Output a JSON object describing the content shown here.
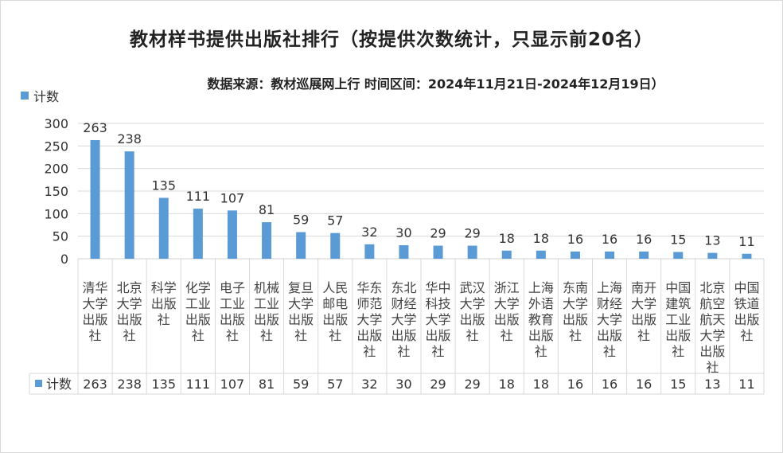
{
  "chart_data": {
    "type": "bar",
    "title": "教材样书提供出版社排行（按提供次数统计，只显示前20名）",
    "subtitle": "数据来源：教材巡展网上行 时间区间：2024年11月21日-2024年12月19日）",
    "series": [
      {
        "name": "计数",
        "color": "#5b9bd5",
        "values": [
          263,
          238,
          135,
          111,
          107,
          81,
          59,
          57,
          32,
          30,
          29,
          29,
          18,
          18,
          16,
          16,
          16,
          15,
          13,
          11
        ]
      }
    ],
    "categories": [
      "清华大学出版社",
      "北京大学出版社",
      "科学出版社",
      "化学工业出版社",
      "电子工业出版社",
      "机械工业出版社",
      "复旦大学出版社",
      "人民邮电出版社",
      "华东师范大学出版社",
      "东北财经大学出版社",
      "华中科技大学出版社",
      "武汉大学出版社",
      "浙江大学出版社",
      "上海外语教育出版社",
      "东南大学出版社",
      "上海财经大学出版社",
      "南开大学出版社",
      "中国建筑工业出版社",
      "北京航空航天大学出版社",
      "中国铁道出版社"
    ],
    "category_lines": [
      [
        "清华",
        "大学",
        "出版",
        "社"
      ],
      [
        "北京",
        "大学",
        "出版",
        "社"
      ],
      [
        "科学",
        "出版",
        "社"
      ],
      [
        "化学",
        "工业",
        "出版",
        "社"
      ],
      [
        "电子",
        "工业",
        "出版",
        "社"
      ],
      [
        "机械",
        "工业",
        "出版",
        "社"
      ],
      [
        "复旦",
        "大学",
        "出版",
        "社"
      ],
      [
        "人民",
        "邮电",
        "出版",
        "社"
      ],
      [
        "华东",
        "师范",
        "大学",
        "出版",
        "社"
      ],
      [
        "东北",
        "财经",
        "大学",
        "出版",
        "社"
      ],
      [
        "华中",
        "科技",
        "大学",
        "出版",
        "社"
      ],
      [
        "武汉",
        "大学",
        "出版",
        "社"
      ],
      [
        "浙江",
        "大学",
        "出版",
        "社"
      ],
      [
        "上海",
        "外语",
        "教育",
        "出版",
        "社"
      ],
      [
        "东南",
        "大学",
        "出版",
        "社"
      ],
      [
        "上海",
        "财经",
        "大学",
        "出版",
        "社"
      ],
      [
        "南开",
        "大学",
        "出版",
        "社"
      ],
      [
        "中国",
        "建筑",
        "工业",
        "出版",
        "社"
      ],
      [
        "北京",
        "航空",
        "航天",
        "大学",
        "出版",
        "社"
      ],
      [
        "中国",
        "铁道",
        "出版",
        "社"
      ]
    ],
    "yticks": [
      "0",
      "50",
      "100",
      "150",
      "200",
      "250",
      "300"
    ],
    "ylim": [
      0,
      300
    ],
    "grid": true,
    "legend_position": "top-left",
    "data_table": true
  }
}
